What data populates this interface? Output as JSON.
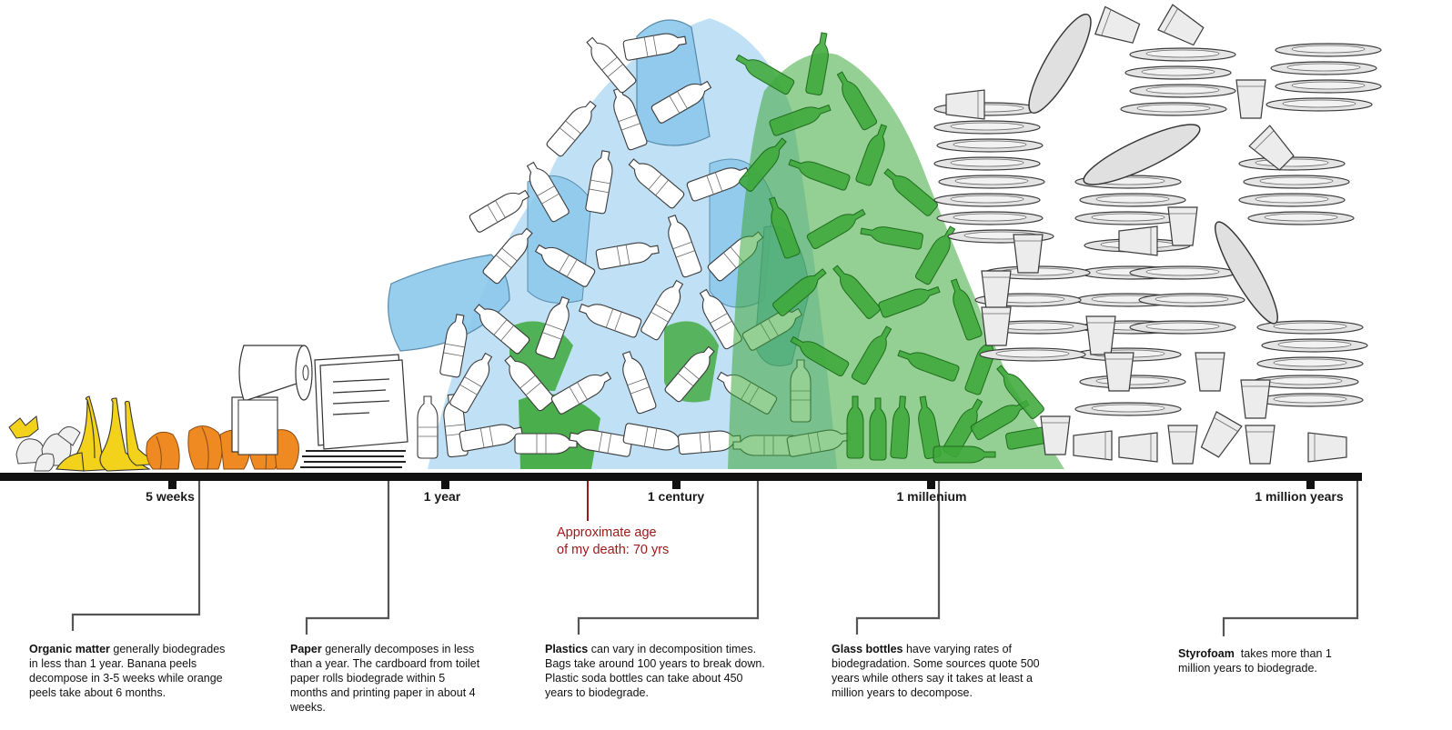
{
  "timeline": {
    "ticks": [
      {
        "label": "5 weeks"
      },
      {
        "label": "1 year"
      },
      {
        "label": "1 century"
      },
      {
        "label": "1 millenium"
      },
      {
        "label": "1 million years"
      }
    ],
    "death_marker": {
      "line1": "Approximate age",
      "line2": "of my death: 70 yrs",
      "color": "#a01818"
    }
  },
  "captions": {
    "organic": {
      "bold": "Organic matter",
      "text": " generally biodegrades in less than 1 year. Banana peels decompose in 3-5 weeks while orange peels take about 6 months."
    },
    "paper": {
      "bold": "Paper",
      "text": " generally decomposes in less than a year. The cardboard from toilet paper rolls biodegrade within 5 months and printing paper in about 4 weeks."
    },
    "plastics": {
      "bold": "Plastics",
      "text": " can vary in decomposition times. Bags take around 100 years to break down. Plastic soda bottles can take about 450 years to biodegrade."
    },
    "glass": {
      "bold": "Glass bottles",
      "text": " have varying rates of biodegradation. Some sources quote 500 years while others say it takes at least a million years to decompose."
    },
    "styrofoam": {
      "bold": "Styrofoam",
      "text": "  takes more than 1 million years to biodegrade."
    }
  },
  "colors": {
    "bag_blue": "#8cc8ec",
    "glass_green": "#3da83a",
    "banana_yellow": "#f2d21b",
    "orange_peel": "#ef8a22",
    "styrofoam_grey": "#dcdcdc",
    "axis": "#111111"
  }
}
